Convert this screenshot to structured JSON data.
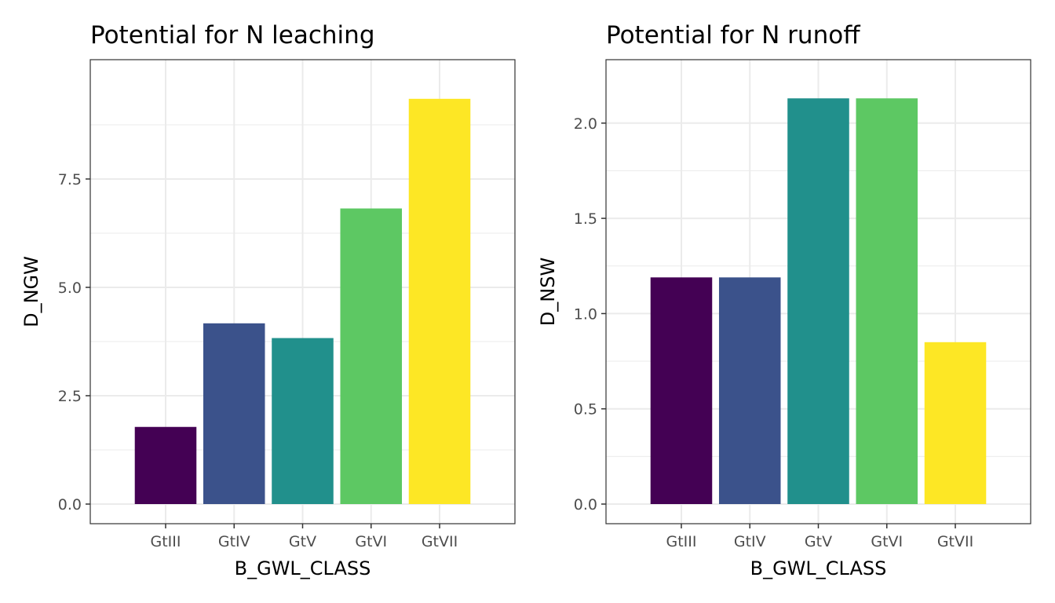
{
  "chart_data": [
    {
      "type": "bar",
      "title": "Potential for N leaching",
      "xlabel": "B_GWL_CLASS",
      "ylabel": "D_NGW",
      "categories": [
        "GtIII",
        "GtIV",
        "GtV",
        "GtVI",
        "GtVII"
      ],
      "values": [
        1.78,
        4.17,
        3.83,
        6.82,
        9.35
      ],
      "colors": [
        "#440154",
        "#3B528B",
        "#21908C",
        "#5DC863",
        "#FDE725"
      ],
      "ylim": [
        0,
        9.8
      ],
      "y_ticks": [
        0,
        2.5,
        5,
        7.5
      ],
      "y_tick_labels": [
        "0.0",
        "2.5",
        "5.0",
        "7.5"
      ],
      "y_minor_ticks": [
        1.25,
        3.75,
        6.25,
        8.75
      ],
      "grid": true
    },
    {
      "type": "bar",
      "title": "Potential for N runoff",
      "xlabel": "B_GWL_CLASS",
      "ylabel": "D_NSW",
      "categories": [
        "GtIII",
        "GtIV",
        "GtV",
        "GtVI",
        "GtVII"
      ],
      "values": [
        1.19,
        1.19,
        2.13,
        2.13,
        0.85
      ],
      "colors": [
        "#440154",
        "#3B528B",
        "#21908C",
        "#5DC863",
        "#FDE725"
      ],
      "ylim": [
        0,
        2.23
      ],
      "y_ticks": [
        0,
        0.5,
        1,
        1.5,
        2
      ],
      "y_tick_labels": [
        "0.0",
        "0.5",
        "1.0",
        "1.5",
        "2.0"
      ],
      "y_minor_ticks": [
        0.25,
        0.75,
        1.25,
        1.75
      ],
      "grid": true
    }
  ]
}
